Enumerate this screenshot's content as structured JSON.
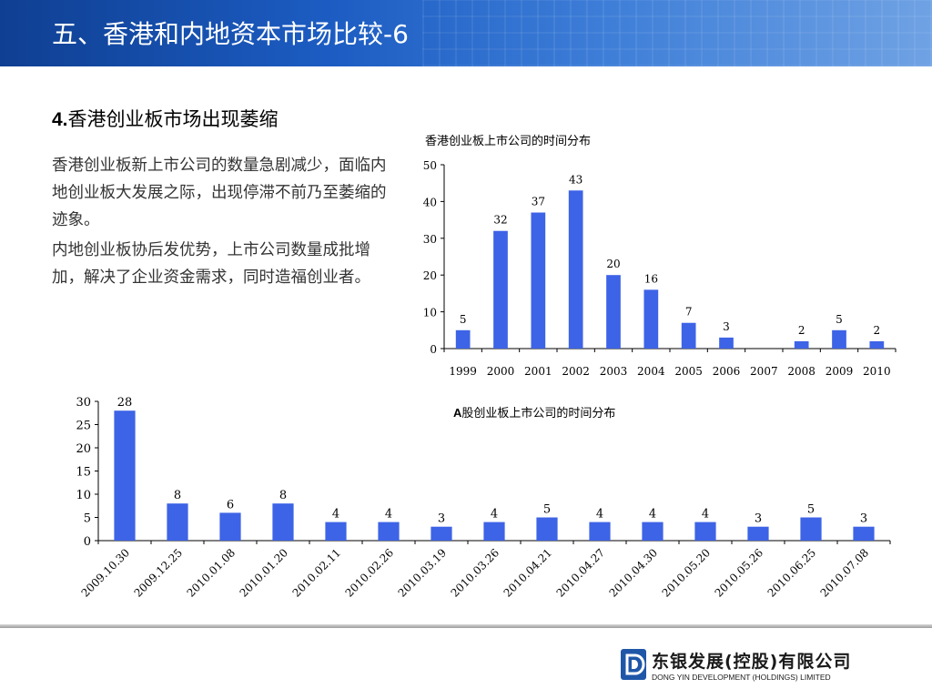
{
  "header": {
    "title": "五、香港和内地资本市场比较-6"
  },
  "section": {
    "number": "4.",
    "title": "香港创业板市场出现萎缩"
  },
  "paragraphs": [
    "香港创业板新上市公司的数量急剧减少，面临内地创业板大发展之际，出现停滞不前乃至萎缩的迹象。",
    "内地创业板协后发优势，上市公司数量成批增加，解决了企业资金需求，同时造福创业者。"
  ],
  "colors": {
    "bar": "#3d63e6",
    "header_dark": "#0f3f92",
    "header_light": "#6fa2e4",
    "logo_blue": "#1f56a8"
  },
  "chart_data": [
    {
      "type": "bar",
      "title": "香港创业板上市公司的时间分布",
      "categories": [
        "1999",
        "2000",
        "2001",
        "2002",
        "2003",
        "2004",
        "2005",
        "2006",
        "2007",
        "2008",
        "2009",
        "2010"
      ],
      "values": [
        5,
        32,
        37,
        43,
        20,
        16,
        7,
        3,
        null,
        2,
        5,
        2
      ],
      "ylim": [
        0,
        50
      ],
      "yticks": [
        0,
        10,
        20,
        30,
        40,
        50
      ],
      "grid": false,
      "legend": "none"
    },
    {
      "type": "bar",
      "title_prefix": "A",
      "title": "股创业板上市公司的时间分布",
      "categories": [
        "2009.10.30",
        "2009.12.25",
        "2010.01.08",
        "2010.01.20",
        "2010.02.11",
        "2010.02.26",
        "2010.03.19",
        "2010.03.26",
        "2010.04.21",
        "2010.04.27",
        "2010.04.30",
        "2010.05.20",
        "2010.05.26",
        "2010.06.25",
        "2010.07.08"
      ],
      "values": [
        28,
        8,
        6,
        8,
        4,
        4,
        3,
        4,
        5,
        4,
        4,
        4,
        3,
        5,
        3
      ],
      "ylim": [
        0,
        30
      ],
      "yticks": [
        0,
        5,
        10,
        15,
        20,
        25,
        30
      ],
      "grid": false,
      "legend": "none"
    }
  ],
  "logo": {
    "name_cn": "东银发展(控股)有限公司",
    "name_en": "DONG YIN DEVELOPMENT (HOLDINGS) LIMITED"
  }
}
